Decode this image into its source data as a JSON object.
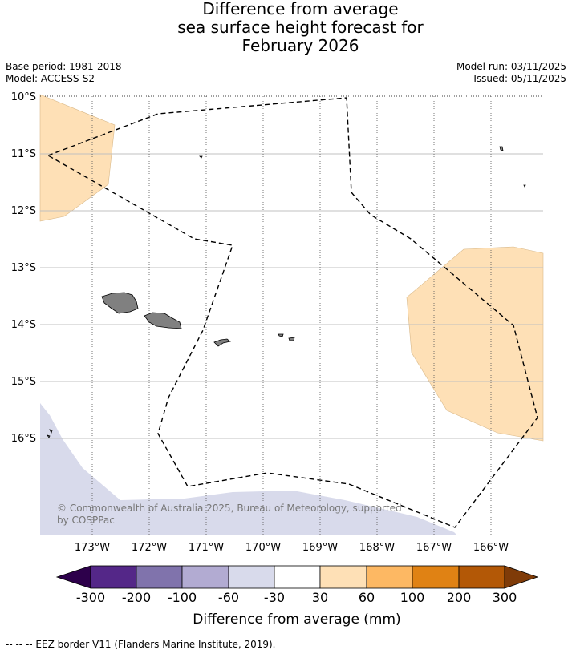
{
  "header": {
    "title_lines": [
      "Difference from average",
      "sea surface height forecast for",
      "February 2026"
    ],
    "base_period": "Base period: 1981-2018",
    "model": "Model: ACCESS-S2",
    "model_run": "Model run: 03/11/2025",
    "issued": "Issued: 05/11/2025"
  },
  "map": {
    "lat_labels": [
      "10°S",
      "11°S",
      "12°S",
      "13°S",
      "14°S",
      "15°S",
      "16°S"
    ],
    "lon_labels": [
      "173°W",
      "172°W",
      "171°W",
      "170°W",
      "169°W",
      "168°W",
      "167°W",
      "166°W"
    ],
    "copyright_lines": [
      "© Commonwealth of Australia 2025, Bureau of Meteorology, supported",
      "by COSPPac"
    ],
    "colors": {
      "land": "#808080",
      "band_30_60": "#fee0b6",
      "band_-60_-30": "#d8daeb",
      "eez_line": "#000000"
    }
  },
  "colorbar": {
    "title": "Difference from average (mm)",
    "tick_labels": [
      "-300",
      "-200",
      "-100",
      "-60",
      "-30",
      "30",
      "60",
      "100",
      "200",
      "300"
    ],
    "colors": [
      "#2d004b",
      "#542788",
      "#8073ac",
      "#b2abd2",
      "#d8daeb",
      "#ffffff",
      "#fee0b6",
      "#fdb863",
      "#e08214",
      "#b35806",
      "#7f3b08"
    ]
  },
  "footer": {
    "legend": "--  --  -- EEZ border V11 (Flanders Marine Institute, 2019)."
  }
}
